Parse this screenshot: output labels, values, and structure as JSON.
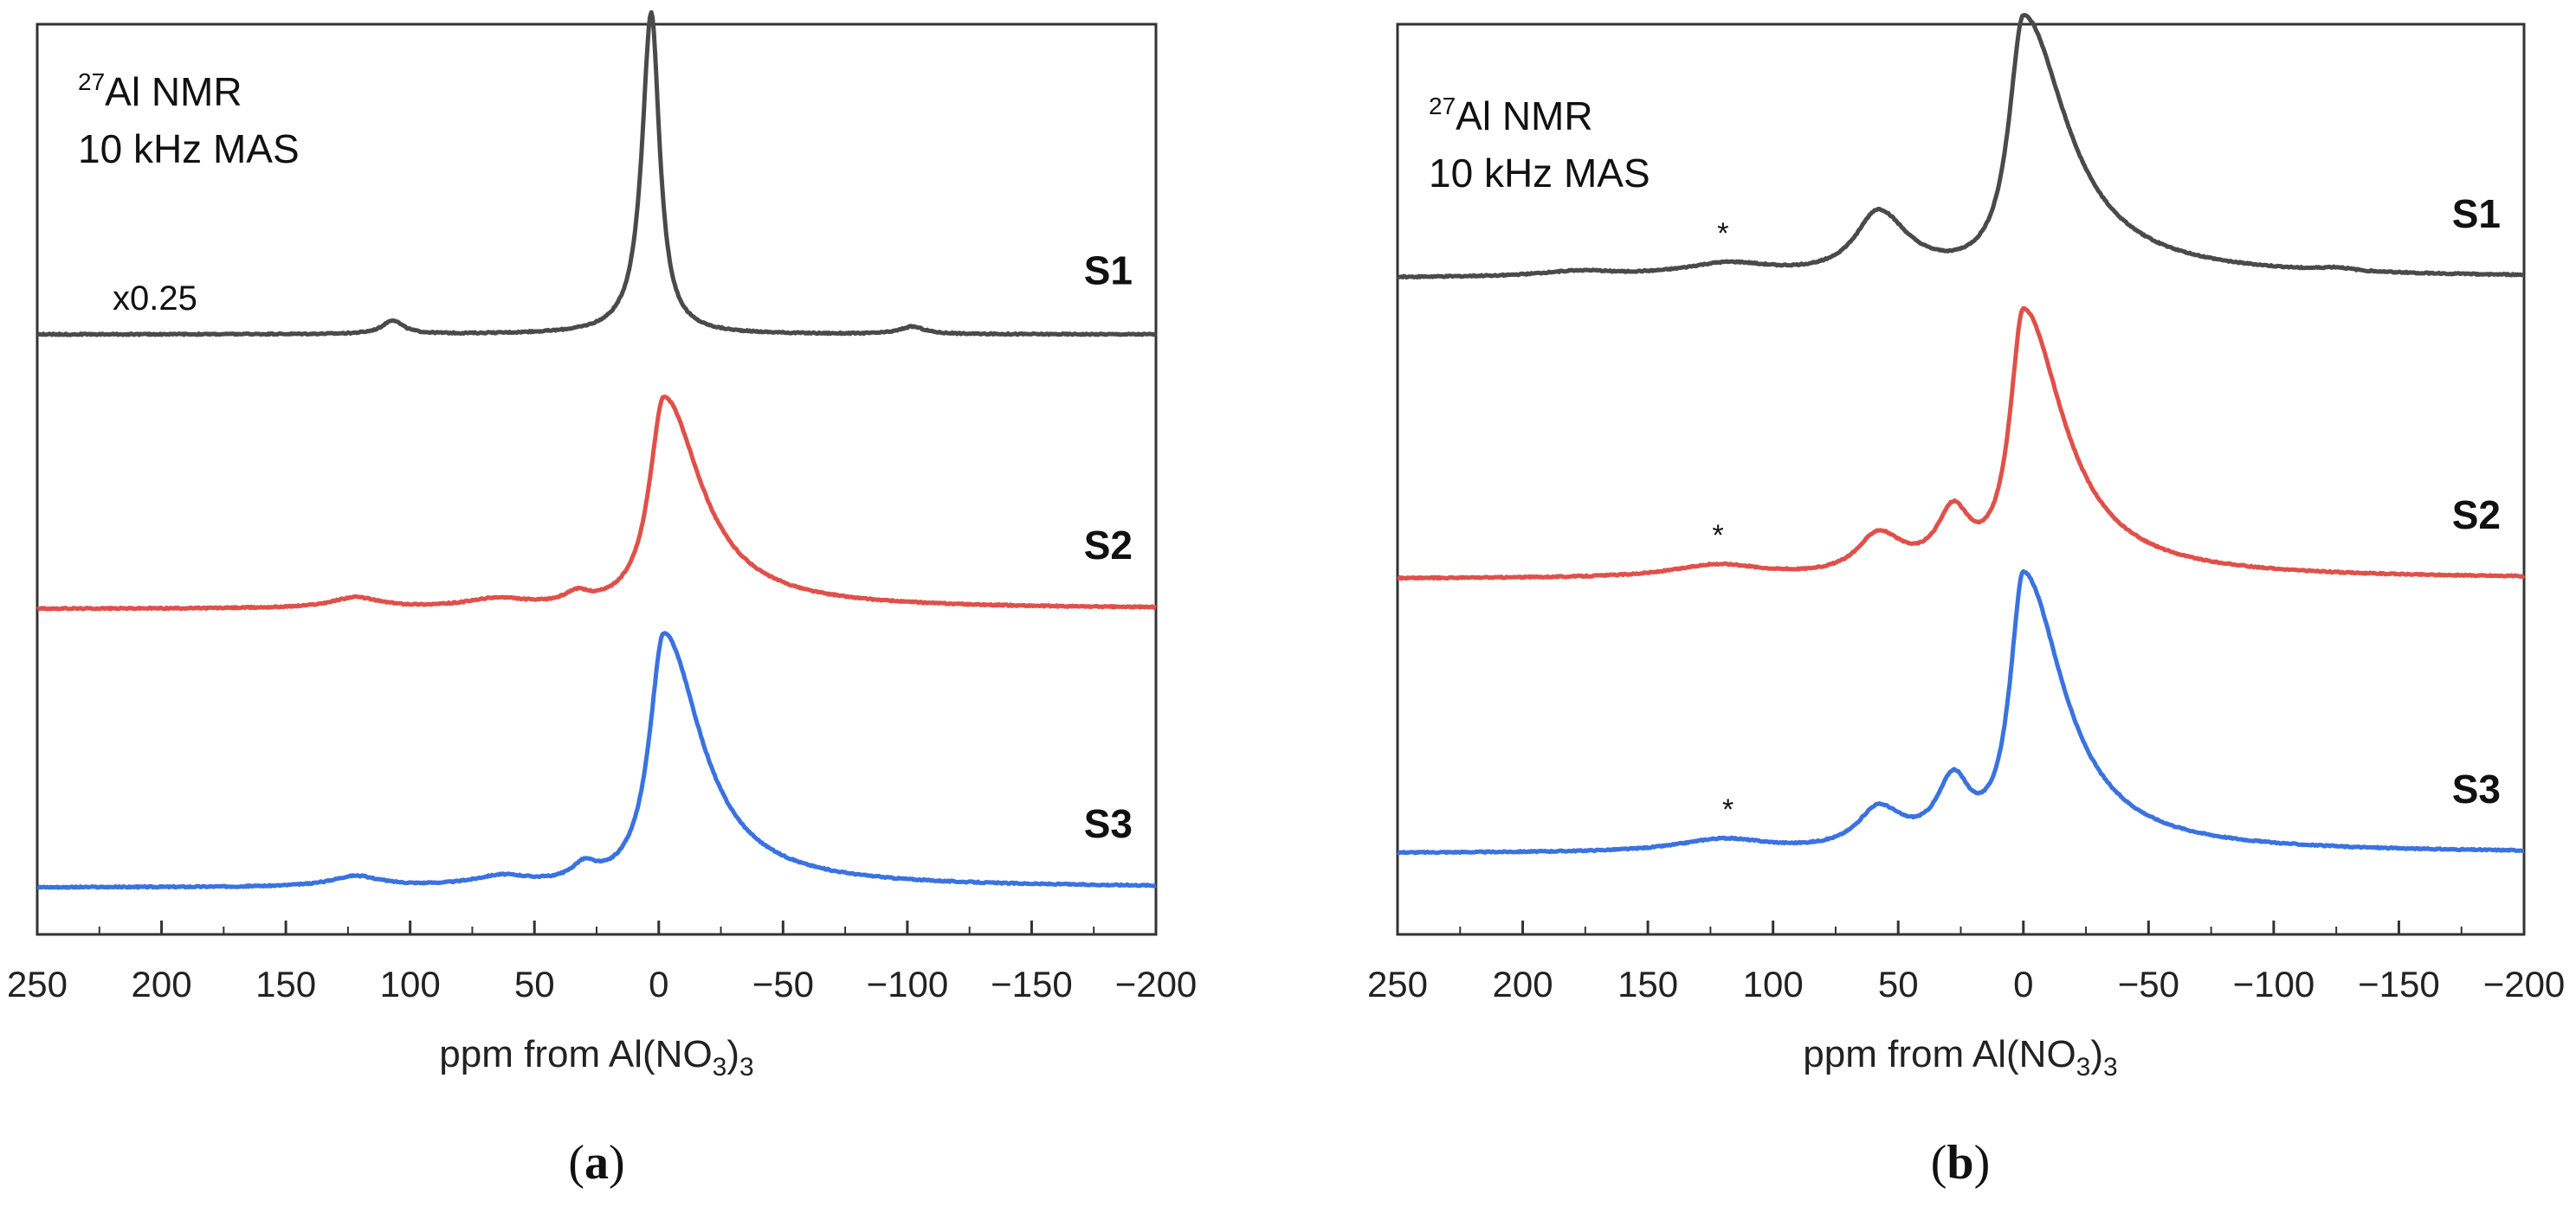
{
  "chart_data": [
    {
      "type": "line",
      "panel": "(a)",
      "panel_letter": "a",
      "title_lines": [
        "27Al NMR",
        "10 kHz MAS"
      ],
      "title_sup": "27",
      "title_main": "Al NMR",
      "title_line2": "10 kHz MAS",
      "scale_note": "x0.25",
      "xlabel_main": "ppm from Al(NO",
      "xlabel_sub": "3",
      "xlabel_end": ")",
      "xlabel_sub2": "3",
      "xlim": [
        250,
        -200
      ],
      "xticks": [
        250,
        200,
        150,
        100,
        50,
        0,
        -50,
        -100,
        -150,
        -200
      ],
      "xtick_labels": [
        "250",
        "200",
        "150",
        "100",
        "50",
        "0",
        "−50",
        "−100",
        "−150",
        "−200"
      ],
      "series": [
        {
          "name": "S1",
          "color": "#4a4a4a",
          "baseline": 0.52,
          "peaks": [
            {
              "center": 3,
              "height": 3.05,
              "width": 4.5,
              "asym": 0.9
            },
            {
              "center": 107,
              "height": 0.13,
              "width": 5,
              "asym": 1
            },
            {
              "center": -102,
              "height": 0.07,
              "width": 6,
              "asym": 1
            }
          ]
        },
        {
          "name": "S2",
          "color": "#e0504a",
          "baseline": -2.08,
          "peaks": [
            {
              "center": -2,
              "height": 2.0,
              "width": 7,
              "asym": 2.6
            },
            {
              "center": 122,
              "height": 0.1,
              "width": 12,
              "asym": 1
            },
            {
              "center": 65,
              "height": 0.08,
              "width": 15,
              "asym": 1
            },
            {
              "center": 33,
              "height": 0.1,
              "width": 6,
              "asym": 1
            }
          ]
        },
        {
          "name": "S3",
          "color": "#3a72e0",
          "baseline": -4.72,
          "peaks": [
            {
              "center": -2,
              "height": 2.4,
              "width": 7,
              "asym": 2.6
            },
            {
              "center": 122,
              "height": 0.1,
              "width": 12,
              "asym": 1
            },
            {
              "center": 63,
              "height": 0.09,
              "width": 14,
              "asym": 1
            },
            {
              "center": 30,
              "height": 0.15,
              "width": 6,
              "asym": 1
            }
          ]
        }
      ],
      "annotations": []
    },
    {
      "type": "line",
      "panel": "(b)",
      "panel_letter": "b",
      "title_sup": "27",
      "title_main": "Al NMR",
      "title_line2": "10 kHz MAS",
      "xlabel_main": "ppm from Al(NO",
      "xlabel_sub": "3",
      "xlabel_end": ")",
      "xlabel_sub2": "3",
      "xlim": [
        250,
        -200
      ],
      "xticks": [
        250,
        200,
        150,
        100,
        50,
        0,
        -50,
        -100,
        -150,
        -200
      ],
      "xtick_labels": [
        "250",
        "200",
        "150",
        "100",
        "50",
        "0",
        "−50",
        "−100",
        "−150",
        "−200"
      ],
      "series": [
        {
          "name": "S1",
          "color": "#4a4a4a",
          "baseline": 0.4,
          "peaks": [
            {
              "center": 0,
              "height": 2.45,
              "width": 7,
              "asym": 3.0
            },
            {
              "center": 58,
              "height": 0.6,
              "width": 11,
              "asym": 1.3
            },
            {
              "center": 118,
              "height": 0.12,
              "width": 22,
              "asym": 1
            },
            {
              "center": 178,
              "height": 0.05,
              "width": 18,
              "asym": 1
            },
            {
              "center": -125,
              "height": 0.03,
              "width": 8,
              "asym": 1
            }
          ]
        },
        {
          "name": "S2",
          "color": "#e0504a",
          "baseline": -2.45,
          "peaks": [
            {
              "center": 0,
              "height": 2.5,
              "width": 6.5,
              "asym": 3.0
            },
            {
              "center": 28,
              "height": 0.55,
              "width": 8,
              "asym": 1
            },
            {
              "center": 58,
              "height": 0.38,
              "width": 10,
              "asym": 1.2
            },
            {
              "center": 122,
              "height": 0.12,
              "width": 22,
              "asym": 1
            }
          ]
        },
        {
          "name": "S3",
          "color": "#3a72e0",
          "baseline": -5.05,
          "peaks": [
            {
              "center": 0,
              "height": 2.6,
              "width": 6.5,
              "asym": 3.0
            },
            {
              "center": 28,
              "height": 0.6,
              "width": 8,
              "asym": 1
            },
            {
              "center": 58,
              "height": 0.38,
              "width": 10,
              "asym": 1.2
            },
            {
              "center": 120,
              "height": 0.12,
              "width": 22,
              "asym": 1
            }
          ]
        }
      ],
      "annotations": [
        {
          "text": "*",
          "ppm": 120,
          "series": "S1"
        },
        {
          "text": "*",
          "ppm": 122,
          "series": "S2"
        },
        {
          "text": "*",
          "ppm": 118,
          "series": "S3"
        }
      ]
    }
  ]
}
